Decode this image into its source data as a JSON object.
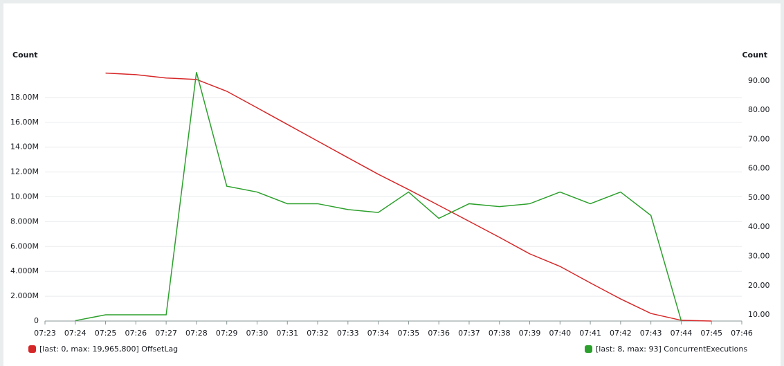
{
  "chart_data": {
    "type": "line",
    "y_label": "Count",
    "y2_label": "Count",
    "categories": [
      "07:23",
      "07:24",
      "07:25",
      "07:26",
      "07:27",
      "07:28",
      "07:29",
      "07:30",
      "07:31",
      "07:32",
      "07:33",
      "07:34",
      "07:35",
      "07:36",
      "07:37",
      "07:38",
      "07:39",
      "07:40",
      "07:41",
      "07:42",
      "07:43",
      "07:44",
      "07:45",
      "07:46"
    ],
    "series": [
      {
        "name": "[last: 0, max: 19,965,800] OffsetLag",
        "color": "#d62728",
        "values": [
          null,
          null,
          19965800,
          19840000,
          19570000,
          19450000,
          18500000,
          17170000,
          15830000,
          14490000,
          13150000,
          11820000,
          10590000,
          9310000,
          8030000,
          6740000,
          5410000,
          4400000,
          3070000,
          1780000,
          610000,
          60000,
          0,
          null
        ]
      },
      {
        "name": "[last: 8, max: 93] ConcurrentExecutions",
        "color": "#2ca02c",
        "axis": "y2",
        "values": [
          null,
          8,
          10,
          10,
          10,
          93,
          54,
          52,
          48,
          48,
          46,
          45,
          52,
          43,
          48,
          47,
          48,
          52,
          48,
          52,
          44,
          8,
          null,
          null
        ]
      }
    ],
    "ylim": [
      0,
      20500000
    ],
    "yticks": [
      0,
      {
        "value": 2000000,
        "label": "2.000M"
      },
      {
        "value": 4000000,
        "label": "4.000M"
      },
      {
        "value": 6000000,
        "label": "6.000M"
      },
      {
        "value": 8000000,
        "label": "8.000M"
      },
      {
        "value": 10000000,
        "label": "10.00M"
      },
      {
        "value": 12000000,
        "label": "12.00M"
      },
      {
        "value": 14000000,
        "label": "14.00M"
      },
      {
        "value": 16000000,
        "label": "16.00M"
      },
      {
        "value": 18000000,
        "label": "18.00M"
      }
    ],
    "y2lim": [
      7.87,
      94.97
    ],
    "y2ticks": [
      {
        "value": 10,
        "label": "10.00"
      },
      {
        "value": 20,
        "label": "20.00"
      },
      {
        "value": 30,
        "label": "30.00"
      },
      {
        "value": 40,
        "label": "40.00"
      },
      {
        "value": 50,
        "label": "50.00"
      },
      {
        "value": 60,
        "label": "60.00"
      },
      {
        "value": 70,
        "label": "70.00"
      },
      {
        "value": 80,
        "label": "80.00"
      },
      {
        "value": 90,
        "label": "90.00"
      }
    ],
    "grid": true
  }
}
